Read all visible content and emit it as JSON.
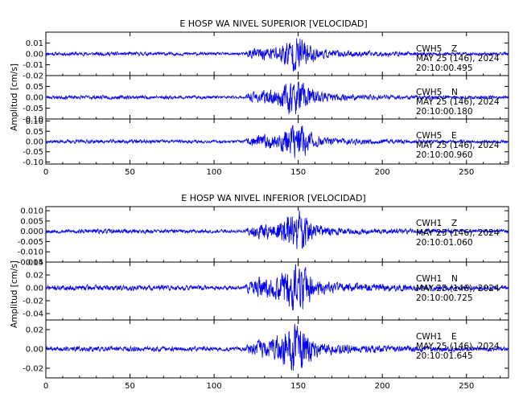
{
  "chart_data": [
    {
      "type": "line",
      "title": "E HOSP WA NIVEL SUPERIOR [VELOCIDAD]",
      "ylabel": "Amplitud [cm/s]",
      "xlabel": "",
      "xlim": [
        0,
        275
      ],
      "x_ticks": [
        0,
        50,
        100,
        150,
        200,
        250
      ],
      "x_tick_labels": [
        "0",
        "50",
        "100",
        "150",
        "200",
        "250"
      ],
      "line_color": "#0000ee",
      "grid": false,
      "panels": [
        {
          "station": "CWH5",
          "component": "Z",
          "date": "MAY 25 (146), 2024",
          "time": "20:10:00.495",
          "ylim": [
            -0.02,
            0.02
          ],
          "y_ticks": [
            0.01,
            0.0,
            -0.01,
            -0.02
          ],
          "y_tick_labels": [
            "0.01",
            "0.00",
            "-0.01",
            "-0.02"
          ],
          "peak_amplitude": 0.018,
          "seed": 11
        },
        {
          "station": "CWH5",
          "component": "N",
          "date": "MAY 25 (146), 2024",
          "time": "20:10:00.180",
          "ylim": [
            -0.1,
            0.1
          ],
          "y_ticks": [
            0.05,
            0.0,
            -0.05,
            -0.1
          ],
          "y_tick_labels": [
            "0.05",
            "0.00",
            "-0.05",
            "-0.10"
          ],
          "peak_amplitude": 0.09,
          "seed": 23
        },
        {
          "station": "CWH5",
          "component": "E",
          "date": "MAY 25 (146), 2024",
          "time": "20:10:00.960",
          "ylim": [
            -0.11,
            0.11
          ],
          "y_ticks": [
            0.1,
            0.05,
            0.0,
            -0.05,
            -0.1
          ],
          "y_tick_labels": [
            "0.10",
            "0.05",
            "0.00",
            "-0.05",
            "-0.10"
          ],
          "peak_amplitude": 0.095,
          "seed": 37
        }
      ]
    },
    {
      "type": "line",
      "title": "E HOSP WA NIVEL INFERIOR [VELOCIDAD]",
      "ylabel": "Amplitud [cm/s]",
      "xlabel": "",
      "xlim": [
        0,
        275
      ],
      "x_ticks": [
        0,
        50,
        100,
        150,
        200,
        250
      ],
      "x_tick_labels": [
        "0",
        "50",
        "100",
        "150",
        "200",
        "250"
      ],
      "line_color": "#0000ee",
      "grid": false,
      "panels": [
        {
          "station": "CWH1",
          "component": "Z",
          "date": "MAY 25 (146), 2024",
          "time": "20:10:01.060",
          "ylim": [
            -0.015,
            0.012
          ],
          "y_ticks": [
            0.01,
            0.005,
            0.0,
            -0.005,
            -0.01,
            -0.015
          ],
          "y_tick_labels": [
            "0.010",
            "0.005",
            "0.000",
            "-0.005",
            "-0.010",
            "-0.015"
          ],
          "peak_amplitude": 0.011,
          "seed": 53
        },
        {
          "station": "CWH1",
          "component": "N",
          "date": "MAY 25 (146), 2024",
          "time": "20:10:00.725",
          "ylim": [
            -0.05,
            0.04
          ],
          "y_ticks": [
            0.04,
            0.02,
            0.0,
            -0.02,
            -0.04
          ],
          "y_tick_labels": [
            "0.04",
            "0.02",
            "0.00",
            "-0.02",
            "-0.04"
          ],
          "peak_amplitude": 0.045,
          "seed": 71
        },
        {
          "station": "CWH1",
          "component": "E",
          "date": "MAY 25 (146), 2024",
          "time": "20:10:01.645",
          "ylim": [
            -0.03,
            0.03
          ],
          "y_ticks": [
            0.02,
            0.0,
            -0.02
          ],
          "y_tick_labels": [
            "0.02",
            "0.00",
            "-0.02"
          ],
          "peak_amplitude": 0.029,
          "seed": 89
        }
      ]
    }
  ]
}
